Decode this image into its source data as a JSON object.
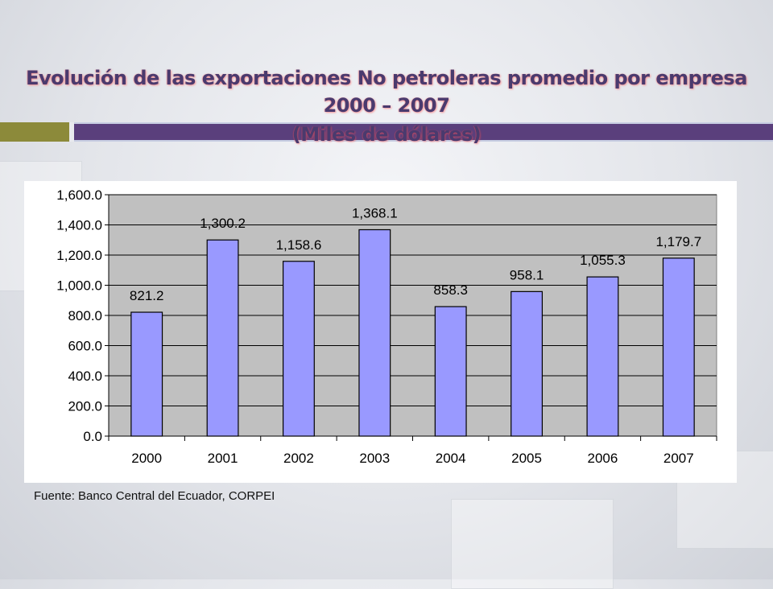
{
  "slide": {
    "title_line1": "Evolución de las exportaciones No petroleras promedio por empresa",
    "title_line2": "2000 – 2007",
    "title_line3": "(Miles de dólares)",
    "source": "Fuente: Banco Central del Ecuador, CORPEI"
  },
  "colors": {
    "bar_fill": "#9999ff",
    "plot_background": "#c0c0c0",
    "title_text": "#4a3a6e",
    "accent_olive": "#8c8a3a",
    "accent_purple": "#5a3f7c"
  },
  "chart_data": {
    "type": "bar",
    "title": "",
    "xlabel": "",
    "ylabel": "",
    "categories": [
      "2000",
      "2001",
      "2002",
      "2003",
      "2004",
      "2005",
      "2006",
      "2007"
    ],
    "values": [
      821.2,
      1300.2,
      1158.6,
      1368.1,
      858.3,
      958.1,
      1055.3,
      1179.7
    ],
    "value_labels": [
      "821.2",
      "1,300.2",
      "1,158.6",
      "1,368.1",
      "858.3",
      "958.1",
      "1,055.3",
      "1,179.7"
    ],
    "ylim": [
      0,
      1600
    ],
    "yticks": [
      0,
      200,
      400,
      600,
      800,
      1000,
      1200,
      1400,
      1600
    ],
    "ytick_labels": [
      "0.0",
      "200.0",
      "400.0",
      "600.0",
      "800.0",
      "1,000.0",
      "1,200.0",
      "1,400.0",
      "1,600.0"
    ],
    "grid": true,
    "legend": "none"
  }
}
